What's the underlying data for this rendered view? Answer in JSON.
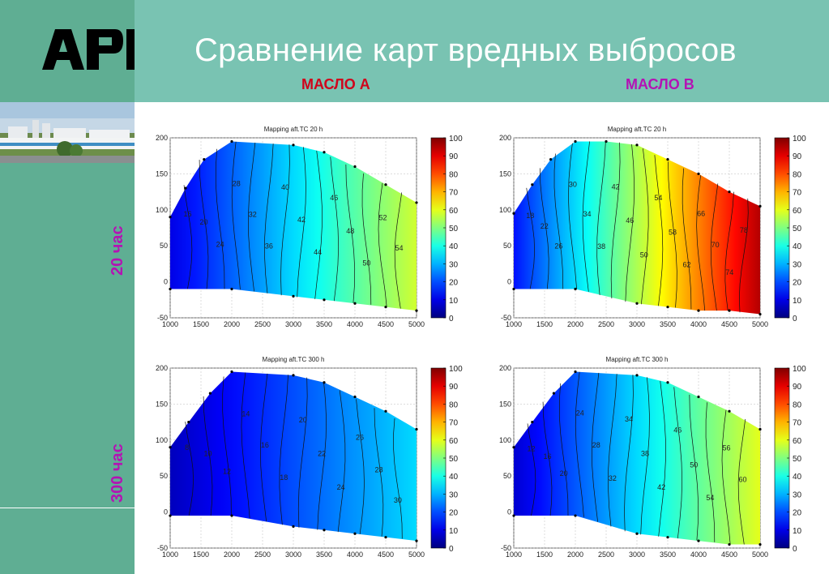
{
  "header": {
    "logo_text": "APL",
    "title": "Сравнение карт вредных выбросов",
    "column_labels": [
      "МАСЛО А",
      "МАСЛО В"
    ],
    "row_labels": [
      "20 час",
      "300 час"
    ]
  },
  "colors": {
    "logo_panel": "#5fae93",
    "title_panel": "#79c3b2",
    "oil_a_label": "#d0021b",
    "oil_b_label": "#b413b4",
    "row_label": "#b413b4",
    "logo_accent": "#22dd22"
  },
  "chart_data": [
    {
      "type": "heatmap",
      "title": "Mapping aft.TC 20 h",
      "xlim": [
        1000,
        5000
      ],
      "ylim": [
        -50,
        200
      ],
      "xticks": [
        1000,
        1500,
        2000,
        2500,
        3000,
        3500,
        4000,
        4500,
        5000
      ],
      "yticks": [
        -50,
        0,
        50,
        100,
        150,
        200
      ],
      "colorbar": {
        "min": 0,
        "max": 100,
        "ticks": [
          0,
          10,
          20,
          30,
          40,
          50,
          60,
          70,
          80,
          90,
          100
        ]
      },
      "value_range": [
        10,
        58
      ],
      "contour_labels": [
        "16",
        "20",
        "24",
        "28",
        "32",
        "36",
        "40",
        "42",
        "44",
        "46",
        "48",
        "50",
        "52",
        "54"
      ],
      "upper_boundary": [
        [
          1000,
          90
        ],
        [
          1250,
          130
        ],
        [
          1550,
          170
        ],
        [
          2000,
          195
        ],
        [
          3000,
          190
        ],
        [
          3500,
          180
        ],
        [
          4000,
          160
        ],
        [
          4500,
          135
        ],
        [
          5000,
          110
        ]
      ],
      "lower_boundary": [
        [
          1000,
          -10
        ],
        [
          2000,
          -10
        ],
        [
          3000,
          -20
        ],
        [
          3500,
          -25
        ],
        [
          4000,
          -30
        ],
        [
          4500,
          -35
        ],
        [
          5000,
          -40
        ]
      ]
    },
    {
      "type": "heatmap",
      "title": "Mapping aft.TC 20 h",
      "xlim": [
        1000,
        5000
      ],
      "ylim": [
        -50,
        200
      ],
      "xticks": [
        1000,
        1500,
        2000,
        2500,
        3000,
        3500,
        4000,
        4500,
        5000
      ],
      "yticks": [
        -50,
        0,
        50,
        100,
        150,
        200
      ],
      "colorbar": {
        "min": 0,
        "max": 100,
        "ticks": [
          0,
          10,
          20,
          30,
          40,
          50,
          60,
          70,
          80,
          90,
          100
        ]
      },
      "value_range": [
        14,
        95
      ],
      "contour_labels": [
        "18",
        "22",
        "26",
        "30",
        "34",
        "38",
        "42",
        "46",
        "50",
        "54",
        "58",
        "62",
        "66",
        "70",
        "74",
        "78"
      ],
      "upper_boundary": [
        [
          1000,
          95
        ],
        [
          1300,
          135
        ],
        [
          1600,
          170
        ],
        [
          2000,
          195
        ],
        [
          2500,
          195
        ],
        [
          3000,
          190
        ],
        [
          3500,
          170
        ],
        [
          4000,
          150
        ],
        [
          4500,
          125
        ],
        [
          5000,
          105
        ]
      ],
      "lower_boundary": [
        [
          1000,
          -10
        ],
        [
          2000,
          -10
        ],
        [
          3000,
          -30
        ],
        [
          3500,
          -35
        ],
        [
          4000,
          -40
        ],
        [
          4500,
          -40
        ],
        [
          5000,
          -45
        ]
      ]
    },
    {
      "type": "heatmap",
      "title": "Mapping aft.TC 300 h",
      "xlim": [
        1000,
        5000
      ],
      "ylim": [
        -50,
        200
      ],
      "xticks": [
        1000,
        1500,
        2000,
        2500,
        3000,
        3500,
        4000,
        4500,
        5000
      ],
      "yticks": [
        -50,
        0,
        50,
        100,
        150,
        200
      ],
      "colorbar": {
        "min": 0,
        "max": 100,
        "ticks": [
          0,
          10,
          20,
          30,
          40,
          50,
          60,
          70,
          80,
          90,
          100
        ]
      },
      "value_range": [
        6,
        34
      ],
      "contour_labels": [
        "8",
        "10",
        "12",
        "14",
        "16",
        "18",
        "20",
        "22",
        "24",
        "26",
        "28",
        "30"
      ],
      "upper_boundary": [
        [
          1000,
          90
        ],
        [
          1300,
          125
        ],
        [
          1650,
          165
        ],
        [
          2000,
          195
        ],
        [
          3000,
          190
        ],
        [
          3500,
          180
        ],
        [
          4000,
          160
        ],
        [
          4500,
          140
        ],
        [
          5000,
          115
        ]
      ],
      "lower_boundary": [
        [
          1000,
          -5
        ],
        [
          2000,
          -5
        ],
        [
          3000,
          -20
        ],
        [
          3500,
          -25
        ],
        [
          4000,
          -30
        ],
        [
          4500,
          -35
        ],
        [
          5000,
          -40
        ]
      ]
    },
    {
      "type": "heatmap",
      "title": "Mapping aft.TC 300 h",
      "xlim": [
        1000,
        5000
      ],
      "ylim": [
        -50,
        200
      ],
      "xticks": [
        1000,
        1500,
        2000,
        2500,
        3000,
        3500,
        4000,
        4500,
        5000
      ],
      "yticks": [
        -50,
        0,
        50,
        100,
        150,
        200
      ],
      "colorbar": {
        "min": 0,
        "max": 100,
        "ticks": [
          0,
          10,
          20,
          30,
          40,
          50,
          60,
          70,
          80,
          90,
          100
        ]
      },
      "value_range": [
        8,
        60
      ],
      "contour_labels": [
        "12",
        "16",
        "20",
        "24",
        "28",
        "32",
        "34",
        "38",
        "42",
        "46",
        "50",
        "54",
        "56",
        "60"
      ],
      "upper_boundary": [
        [
          1000,
          90
        ],
        [
          1300,
          125
        ],
        [
          1650,
          165
        ],
        [
          2000,
          195
        ],
        [
          3000,
          190
        ],
        [
          3500,
          180
        ],
        [
          4000,
          160
        ],
        [
          4500,
          140
        ],
        [
          5000,
          115
        ]
      ],
      "lower_boundary": [
        [
          1000,
          -5
        ],
        [
          2000,
          -5
        ],
        [
          3000,
          -30
        ],
        [
          3500,
          -35
        ],
        [
          4000,
          -40
        ],
        [
          4500,
          -45
        ],
        [
          5000,
          -45
        ]
      ]
    }
  ]
}
